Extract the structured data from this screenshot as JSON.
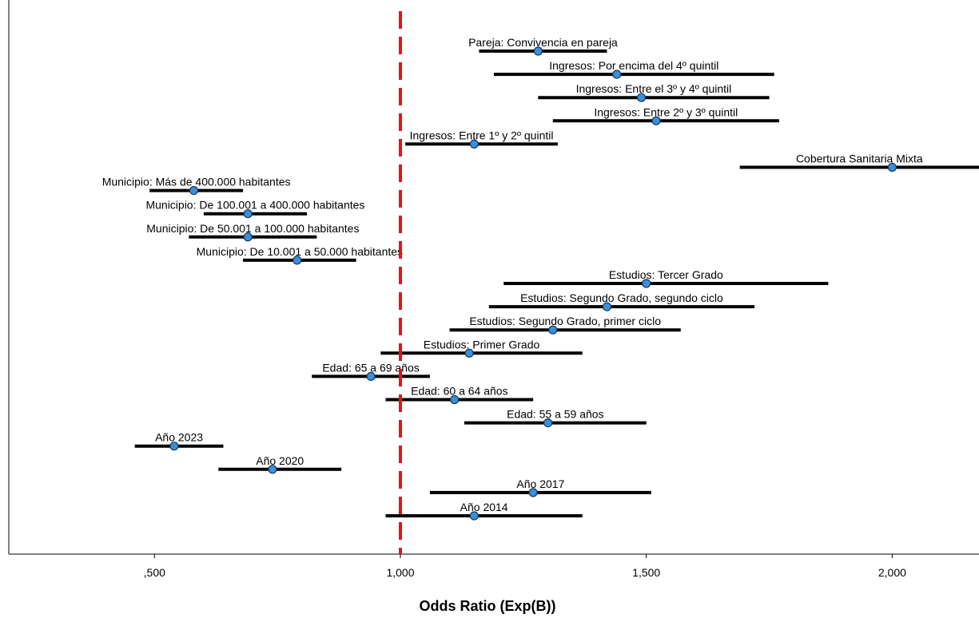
{
  "chart_data": {
    "type": "forest",
    "xlabel": "Odds Ratio (Exp(B))",
    "xlim": [
      0.21,
      2.2
    ],
    "xticks": [
      0.5,
      1.0,
      1.5,
      2.0
    ],
    "xtick_labels": [
      ",500",
      "1,000",
      "1,500",
      "2,000"
    ],
    "reference_line": 1.0,
    "reference_color": "#ee1111",
    "marker_color": "#3b8fd9",
    "rows": [
      {
        "label": "Pareja: Convivencia en pareja",
        "or": 1.28,
        "lo": 1.16,
        "hi": 1.42
      },
      {
        "label": "Ingresos: Por encima del 4º quintil",
        "or": 1.44,
        "lo": 1.19,
        "hi": 1.76
      },
      {
        "label": "Ingresos: Entre el 3º y 4º quintil",
        "or": 1.49,
        "lo": 1.28,
        "hi": 1.75
      },
      {
        "label": "Ingresos: Entre 2º y 3º quintil",
        "or": 1.52,
        "lo": 1.31,
        "hi": 1.77
      },
      {
        "label": "Ingresos: Entre 1º y 2º quintil",
        "or": 1.15,
        "lo": 1.01,
        "hi": 1.32
      },
      {
        "label": "Cobertura Sanitaria Mixta",
        "or": 2.0,
        "lo": 1.69,
        "hi": 2.2
      },
      {
        "label": "Municipio: Más de 400.000 habitantes",
        "or": 0.58,
        "lo": 0.49,
        "hi": 0.68
      },
      {
        "label": "Municipio: De 100.001 a 400.000 habitantes",
        "or": 0.69,
        "lo": 0.6,
        "hi": 0.81
      },
      {
        "label": "Municipio: De 50.001 a 100.000 habitantes",
        "or": 0.69,
        "lo": 0.57,
        "hi": 0.83
      },
      {
        "label": "Municipio: De 10.001 a 50.000 habitantes",
        "or": 0.79,
        "lo": 0.68,
        "hi": 0.91
      },
      {
        "label": "Estudios: Tercer Grado",
        "or": 1.5,
        "lo": 1.21,
        "hi": 1.87
      },
      {
        "label": "Estudios: Segundo Grado, segundo ciclo",
        "or": 1.42,
        "lo": 1.18,
        "hi": 1.72
      },
      {
        "label": "Estudios: Segundo Grado, primer ciclo",
        "or": 1.31,
        "lo": 1.1,
        "hi": 1.57
      },
      {
        "label": "Estudios: Primer Grado",
        "or": 1.14,
        "lo": 0.96,
        "hi": 1.37
      },
      {
        "label": "Edad: 65 a 69 años",
        "or": 0.94,
        "lo": 0.82,
        "hi": 1.06
      },
      {
        "label": "Edad: 60 a 64 años",
        "or": 1.11,
        "lo": 0.97,
        "hi": 1.27
      },
      {
        "label": "Edad: 55 a 59 años",
        "or": 1.3,
        "lo": 1.13,
        "hi": 1.5
      },
      {
        "label": "Año 2023",
        "or": 0.54,
        "lo": 0.46,
        "hi": 0.64
      },
      {
        "label": "Año 2020",
        "or": 0.74,
        "lo": 0.63,
        "hi": 0.88
      },
      {
        "label": "Año 2017",
        "or": 1.27,
        "lo": 1.06,
        "hi": 1.51
      },
      {
        "label": "Año 2014",
        "or": 1.15,
        "lo": 0.97,
        "hi": 1.37
      }
    ]
  }
}
